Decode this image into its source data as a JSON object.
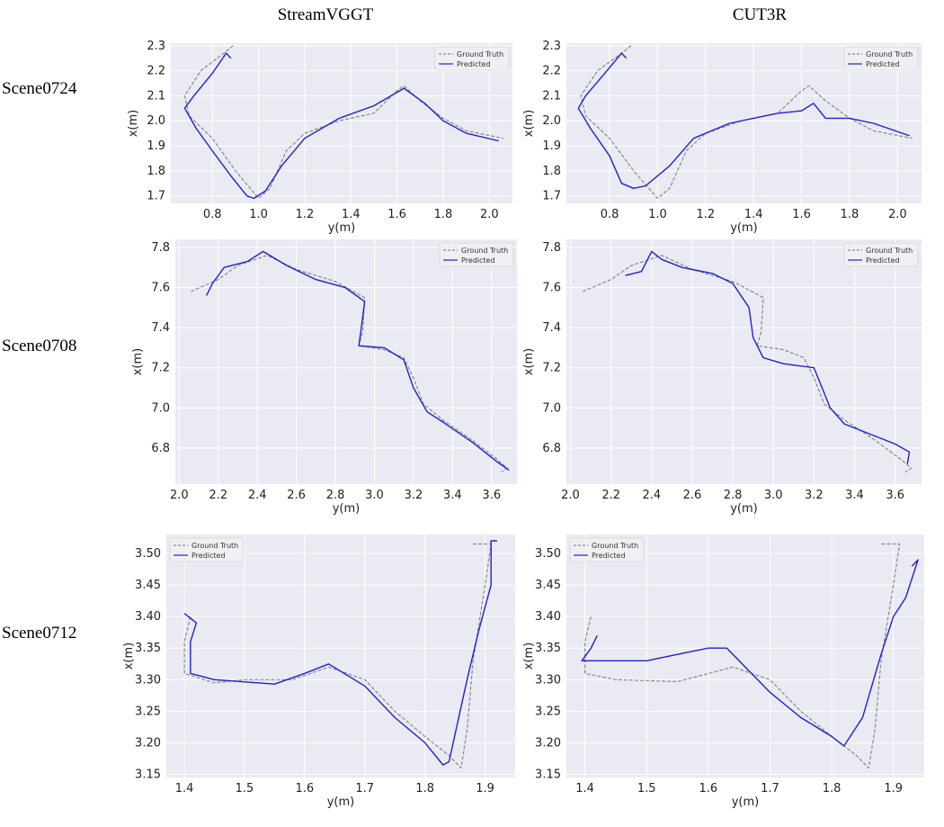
{
  "column_titles": [
    "StreamVGGT",
    "CUT3R"
  ],
  "row_titles": [
    "Scene0724",
    "Scene0708",
    "Scene0712"
  ],
  "colors": {
    "ground_truth": "#8a8a8a",
    "predicted": "#1f1fd6",
    "plot_bg": "#eaeaf2",
    "grid": "#ffffff"
  },
  "chart_data": [
    {
      "type": "line",
      "title": "",
      "xlabel": "y(m)",
      "ylabel": "x(m)",
      "xlim": [
        0.62,
        2.1
      ],
      "ylim": [
        1.67,
        2.31
      ],
      "xticks": [
        "0.8",
        "1.0",
        "1.2",
        "1.4",
        "1.6",
        "1.8",
        "2.0"
      ],
      "yticks": [
        "1.7",
        "1.8",
        "1.9",
        "2.0",
        "2.1",
        "2.2",
        "2.3"
      ],
      "grid": true,
      "legend_position": "top-right",
      "series": [
        {
          "name": "Ground Truth",
          "style": "dashed",
          "points": [
            [
              0.89,
              2.3
            ],
            [
              0.85,
              2.27
            ],
            [
              0.75,
              2.2
            ],
            [
              0.68,
              2.1
            ],
            [
              0.7,
              2.02
            ],
            [
              0.8,
              1.93
            ],
            [
              0.9,
              1.8
            ],
            [
              1.0,
              1.69
            ],
            [
              1.05,
              1.73
            ],
            [
              1.12,
              1.88
            ],
            [
              1.2,
              1.95
            ],
            [
              1.35,
              2.0
            ],
            [
              1.5,
              2.03
            ],
            [
              1.6,
              2.12
            ],
            [
              1.63,
              2.14
            ],
            [
              1.7,
              2.08
            ],
            [
              1.8,
              2.01
            ],
            [
              1.9,
              1.96
            ],
            [
              2.06,
              1.93
            ]
          ]
        },
        {
          "name": "Predicted",
          "style": "solid",
          "points": [
            [
              0.88,
              2.25
            ],
            [
              0.86,
              2.27
            ],
            [
              0.8,
              2.19
            ],
            [
              0.72,
              2.1
            ],
            [
              0.68,
              2.05
            ],
            [
              0.73,
              1.97
            ],
            [
              0.8,
              1.88
            ],
            [
              0.88,
              1.78
            ],
            [
              0.95,
              1.7
            ],
            [
              0.98,
              1.69
            ],
            [
              1.03,
              1.72
            ],
            [
              1.1,
              1.82
            ],
            [
              1.2,
              1.93
            ],
            [
              1.35,
              2.01
            ],
            [
              1.5,
              2.06
            ],
            [
              1.63,
              2.13
            ],
            [
              1.72,
              2.07
            ],
            [
              1.8,
              2.0
            ],
            [
              1.9,
              1.95
            ],
            [
              2.04,
              1.92
            ]
          ]
        }
      ]
    },
    {
      "type": "line",
      "title": "",
      "xlabel": "y(m)",
      "ylabel": "x(m)",
      "xlim": [
        0.62,
        2.1
      ],
      "ylim": [
        1.67,
        2.31
      ],
      "xticks": [
        "0.8",
        "1.0",
        "1.2",
        "1.4",
        "1.6",
        "1.8",
        "2.0"
      ],
      "yticks": [
        "1.7",
        "1.8",
        "1.9",
        "2.0",
        "2.1",
        "2.2",
        "2.3"
      ],
      "grid": true,
      "legend_position": "top-right",
      "series": [
        {
          "name": "Ground Truth",
          "style": "dashed",
          "points": [
            [
              0.89,
              2.3
            ],
            [
              0.85,
              2.27
            ],
            [
              0.75,
              2.2
            ],
            [
              0.68,
              2.1
            ],
            [
              0.7,
              2.02
            ],
            [
              0.8,
              1.93
            ],
            [
              0.9,
              1.8
            ],
            [
              1.0,
              1.69
            ],
            [
              1.05,
              1.73
            ],
            [
              1.12,
              1.88
            ],
            [
              1.2,
              1.95
            ],
            [
              1.35,
              2.0
            ],
            [
              1.5,
              2.03
            ],
            [
              1.6,
              2.12
            ],
            [
              1.63,
              2.14
            ],
            [
              1.7,
              2.08
            ],
            [
              1.8,
              2.01
            ],
            [
              1.9,
              1.96
            ],
            [
              2.06,
              1.93
            ]
          ]
        },
        {
          "name": "Predicted",
          "style": "solid",
          "points": [
            [
              0.87,
              2.25
            ],
            [
              0.85,
              2.27
            ],
            [
              0.78,
              2.19
            ],
            [
              0.7,
              2.1
            ],
            [
              0.67,
              2.05
            ],
            [
              0.72,
              1.97
            ],
            [
              0.8,
              1.86
            ],
            [
              0.85,
              1.75
            ],
            [
              0.9,
              1.73
            ],
            [
              0.95,
              1.74
            ],
            [
              1.05,
              1.82
            ],
            [
              1.15,
              1.93
            ],
            [
              1.3,
              1.99
            ],
            [
              1.5,
              2.03
            ],
            [
              1.6,
              2.04
            ],
            [
              1.65,
              2.07
            ],
            [
              1.7,
              2.01
            ],
            [
              1.8,
              2.01
            ],
            [
              1.9,
              1.99
            ],
            [
              2.05,
              1.94
            ]
          ]
        }
      ]
    },
    {
      "type": "line",
      "title": "",
      "xlabel": "y(m)",
      "ylabel": "x(m)",
      "xlim": [
        1.98,
        3.73
      ],
      "ylim": [
        6.62,
        7.84
      ],
      "xticks": [
        "2.0",
        "2.2",
        "2.4",
        "2.6",
        "2.8",
        "3.0",
        "3.2",
        "3.4",
        "3.6"
      ],
      "yticks": [
        "6.8",
        "7.0",
        "7.2",
        "7.4",
        "7.6",
        "7.8"
      ],
      "grid": true,
      "legend_position": "top-right",
      "series": [
        {
          "name": "Ground Truth",
          "style": "dashed",
          "points": [
            [
              2.06,
              7.58
            ],
            [
              2.2,
              7.64
            ],
            [
              2.3,
              7.71
            ],
            [
              2.45,
              7.76
            ],
            [
              2.6,
              7.69
            ],
            [
              2.8,
              7.63
            ],
            [
              2.95,
              7.55
            ],
            [
              2.94,
              7.38
            ],
            [
              2.92,
              7.31
            ],
            [
              3.05,
              7.29
            ],
            [
              3.15,
              7.25
            ],
            [
              3.2,
              7.15
            ],
            [
              3.25,
              7.02
            ],
            [
              3.35,
              6.94
            ],
            [
              3.5,
              6.84
            ],
            [
              3.62,
              6.75
            ],
            [
              3.68,
              6.7
            ],
            [
              3.65,
              6.68
            ]
          ]
        },
        {
          "name": "Predicted",
          "style": "solid",
          "points": [
            [
              2.14,
              7.56
            ],
            [
              2.17,
              7.62
            ],
            [
              2.23,
              7.7
            ],
            [
              2.35,
              7.73
            ],
            [
              2.43,
              7.78
            ],
            [
              2.55,
              7.71
            ],
            [
              2.7,
              7.64
            ],
            [
              2.85,
              7.6
            ],
            [
              2.95,
              7.53
            ],
            [
              2.93,
              7.38
            ],
            [
              2.92,
              7.31
            ],
            [
              3.05,
              7.3
            ],
            [
              3.15,
              7.24
            ],
            [
              3.2,
              7.1
            ],
            [
              3.27,
              6.98
            ],
            [
              3.35,
              6.93
            ],
            [
              3.5,
              6.83
            ],
            [
              3.63,
              6.73
            ],
            [
              3.69,
              6.69
            ]
          ]
        }
      ]
    },
    {
      "type": "line",
      "title": "",
      "xlabel": "y(m)",
      "ylabel": "x(m)",
      "xlim": [
        1.98,
        3.73
      ],
      "ylim": [
        6.62,
        7.84
      ],
      "xticks": [
        "2.0",
        "2.2",
        "2.4",
        "2.6",
        "2.8",
        "3.0",
        "3.2",
        "3.4",
        "3.6"
      ],
      "yticks": [
        "6.8",
        "7.0",
        "7.2",
        "7.4",
        "7.6",
        "7.8"
      ],
      "grid": true,
      "legend_position": "top-right",
      "series": [
        {
          "name": "Ground Truth",
          "style": "dashed",
          "points": [
            [
              2.06,
              7.58
            ],
            [
              2.2,
              7.64
            ],
            [
              2.3,
              7.71
            ],
            [
              2.45,
              7.76
            ],
            [
              2.6,
              7.69
            ],
            [
              2.8,
              7.63
            ],
            [
              2.95,
              7.55
            ],
            [
              2.94,
              7.38
            ],
            [
              2.92,
              7.31
            ],
            [
              3.05,
              7.29
            ],
            [
              3.15,
              7.25
            ],
            [
              3.2,
              7.15
            ],
            [
              3.25,
              7.02
            ],
            [
              3.35,
              6.94
            ],
            [
              3.5,
              6.84
            ],
            [
              3.62,
              6.75
            ],
            [
              3.68,
              6.7
            ],
            [
              3.65,
              6.68
            ]
          ]
        },
        {
          "name": "Predicted",
          "style": "solid",
          "points": [
            [
              2.27,
              7.66
            ],
            [
              2.35,
              7.68
            ],
            [
              2.4,
              7.78
            ],
            [
              2.45,
              7.74
            ],
            [
              2.55,
              7.7
            ],
            [
              2.7,
              7.67
            ],
            [
              2.8,
              7.62
            ],
            [
              2.88,
              7.5
            ],
            [
              2.9,
              7.35
            ],
            [
              2.95,
              7.25
            ],
            [
              3.05,
              7.22
            ],
            [
              3.2,
              7.2
            ],
            [
              3.28,
              7.0
            ],
            [
              3.35,
              6.92
            ],
            [
              3.5,
              6.86
            ],
            [
              3.6,
              6.82
            ],
            [
              3.67,
              6.78
            ],
            [
              3.66,
              6.72
            ]
          ]
        }
      ]
    },
    {
      "type": "line",
      "title": "",
      "xlabel": "y(m)",
      "ylabel": "x(m)",
      "xlim": [
        1.37,
        1.95
      ],
      "ylim": [
        3.145,
        3.53
      ],
      "xticks": [
        "1.4",
        "1.5",
        "1.6",
        "1.7",
        "1.8",
        "1.9"
      ],
      "yticks": [
        "3.15",
        "3.20",
        "3.25",
        "3.30",
        "3.35",
        "3.40",
        "3.45",
        "3.50"
      ],
      "grid": true,
      "legend_position": "top-left",
      "series": [
        {
          "name": "Ground Truth",
          "style": "dashed",
          "points": [
            [
              1.41,
              3.4
            ],
            [
              1.4,
              3.36
            ],
            [
              1.4,
              3.31
            ],
            [
              1.45,
              3.295
            ],
            [
              1.5,
              3.3
            ],
            [
              1.58,
              3.3
            ],
            [
              1.64,
              3.32
            ],
            [
              1.7,
              3.3
            ],
            [
              1.75,
              3.25
            ],
            [
              1.8,
              3.21
            ],
            [
              1.84,
              3.18
            ],
            [
              1.86,
              3.16
            ],
            [
              1.87,
              3.22
            ],
            [
              1.88,
              3.33
            ],
            [
              1.9,
              3.45
            ],
            [
              1.91,
              3.515
            ],
            [
              1.88,
              3.515
            ]
          ]
        },
        {
          "name": "Predicted",
          "style": "solid",
          "points": [
            [
              1.4,
              3.405
            ],
            [
              1.42,
              3.39
            ],
            [
              1.41,
              3.36
            ],
            [
              1.41,
              3.31
            ],
            [
              1.45,
              3.3
            ],
            [
              1.55,
              3.293
            ],
            [
              1.6,
              3.31
            ],
            [
              1.64,
              3.325
            ],
            [
              1.7,
              3.29
            ],
            [
              1.75,
              3.24
            ],
            [
              1.8,
              3.2
            ],
            [
              1.83,
              3.165
            ],
            [
              1.84,
              3.17
            ],
            [
              1.87,
              3.3
            ],
            [
              1.89,
              3.38
            ],
            [
              1.91,
              3.45
            ],
            [
              1.91,
              3.52
            ],
            [
              1.92,
              3.52
            ]
          ]
        }
      ]
    },
    {
      "type": "line",
      "title": "",
      "xlabel": "y(m)",
      "ylabel": "x(m)",
      "xlim": [
        1.37,
        1.95
      ],
      "ylim": [
        3.145,
        3.53
      ],
      "xticks": [
        "1.4",
        "1.5",
        "1.6",
        "1.7",
        "1.8",
        "1.9"
      ],
      "yticks": [
        "3.15",
        "3.20",
        "3.25",
        "3.30",
        "3.35",
        "3.40",
        "3.45",
        "3.50"
      ],
      "grid": true,
      "legend_position": "top-left",
      "series": [
        {
          "name": "Ground Truth",
          "style": "dashed",
          "points": [
            [
              1.41,
              3.4
            ],
            [
              1.4,
              3.36
            ],
            [
              1.4,
              3.31
            ],
            [
              1.45,
              3.3
            ],
            [
              1.55,
              3.297
            ],
            [
              1.64,
              3.32
            ],
            [
              1.7,
              3.3
            ],
            [
              1.75,
              3.25
            ],
            [
              1.8,
              3.21
            ],
            [
              1.84,
              3.18
            ],
            [
              1.86,
              3.16
            ],
            [
              1.87,
              3.22
            ],
            [
              1.88,
              3.33
            ],
            [
              1.9,
              3.45
            ],
            [
              1.91,
              3.515
            ],
            [
              1.88,
              3.515
            ]
          ]
        },
        {
          "name": "Predicted",
          "style": "solid",
          "points": [
            [
              1.42,
              3.37
            ],
            [
              1.41,
              3.35
            ],
            [
              1.395,
              3.33
            ],
            [
              1.43,
              3.33
            ],
            [
              1.5,
              3.33
            ],
            [
              1.55,
              3.34
            ],
            [
              1.6,
              3.35
            ],
            [
              1.63,
              3.35
            ],
            [
              1.7,
              3.28
            ],
            [
              1.75,
              3.24
            ],
            [
              1.8,
              3.21
            ],
            [
              1.82,
              3.195
            ],
            [
              1.85,
              3.24
            ],
            [
              1.88,
              3.34
            ],
            [
              1.9,
              3.4
            ],
            [
              1.92,
              3.43
            ],
            [
              1.94,
              3.49
            ],
            [
              1.93,
              3.48
            ]
          ]
        }
      ]
    }
  ]
}
